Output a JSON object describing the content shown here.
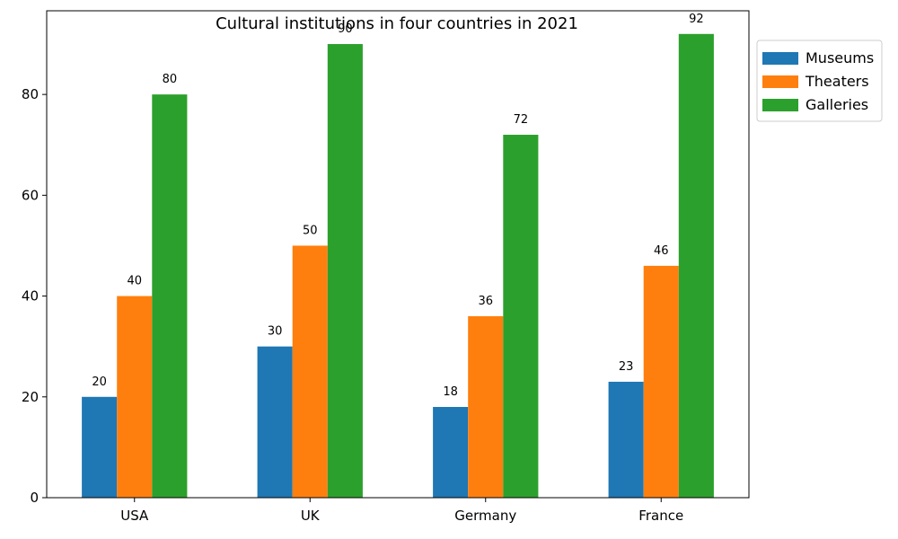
{
  "chart_data": {
    "type": "bar",
    "title": "Cultural institutions in four countries in 2021",
    "xlabel": "",
    "ylabel": "",
    "categories": [
      "USA",
      "UK",
      "Germany",
      "France"
    ],
    "series": [
      {
        "name": "Museums",
        "color": "#1f77b4",
        "values": [
          20,
          30,
          18,
          23
        ]
      },
      {
        "name": "Theaters",
        "color": "#ff7f0e",
        "values": [
          40,
          50,
          36,
          46
        ]
      },
      {
        "name": "Galleries",
        "color": "#2ca02c",
        "values": [
          80,
          90,
          72,
          92
        ]
      }
    ],
    "ylim": [
      0,
      96.6
    ],
    "yticks": [
      0,
      20,
      40,
      60,
      80
    ],
    "grid": false,
    "legend": "outside-top-right",
    "data_labels": true
  }
}
